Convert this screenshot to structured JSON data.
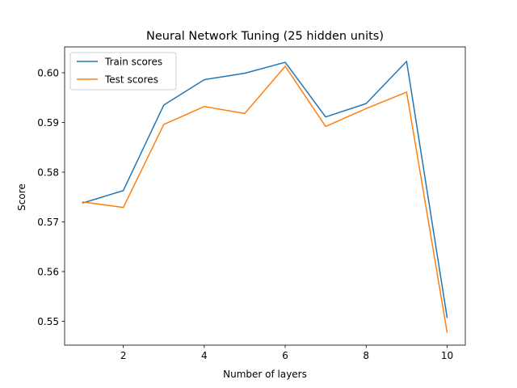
{
  "chart_data": {
    "type": "line",
    "title": "Neural Network Tuning (25 hidden units)",
    "xlabel": "Number of layers",
    "ylabel": "Score",
    "x": [
      1,
      2,
      3,
      4,
      5,
      6,
      7,
      8,
      9,
      10
    ],
    "xlim": [
      0.55,
      10.45
    ],
    "ylim": [
      0.5452,
      0.6052
    ],
    "xticks": [
      2,
      4,
      6,
      8,
      10
    ],
    "xtick_labels": [
      "2",
      "4",
      "6",
      "8",
      "10"
    ],
    "yticks": [
      0.55,
      0.56,
      0.57,
      0.58,
      0.59,
      0.6
    ],
    "ytick_labels": [
      "0.55",
      "0.56",
      "0.57",
      "0.58",
      "0.59",
      "0.60"
    ],
    "grid": false,
    "legend_position": "top-left",
    "series": [
      {
        "name": "Train scores",
        "color": "#1f77b4",
        "values": [
          0.5738,
          0.5763,
          0.5935,
          0.5986,
          0.5999,
          0.6021,
          0.5911,
          0.5938,
          0.6023,
          0.5508
        ]
      },
      {
        "name": "Test scores",
        "color": "#ff7f0e",
        "values": [
          0.574,
          0.5729,
          0.5896,
          0.5932,
          0.5918,
          0.6013,
          0.5892,
          0.5928,
          0.5961,
          0.5478
        ]
      }
    ]
  }
}
